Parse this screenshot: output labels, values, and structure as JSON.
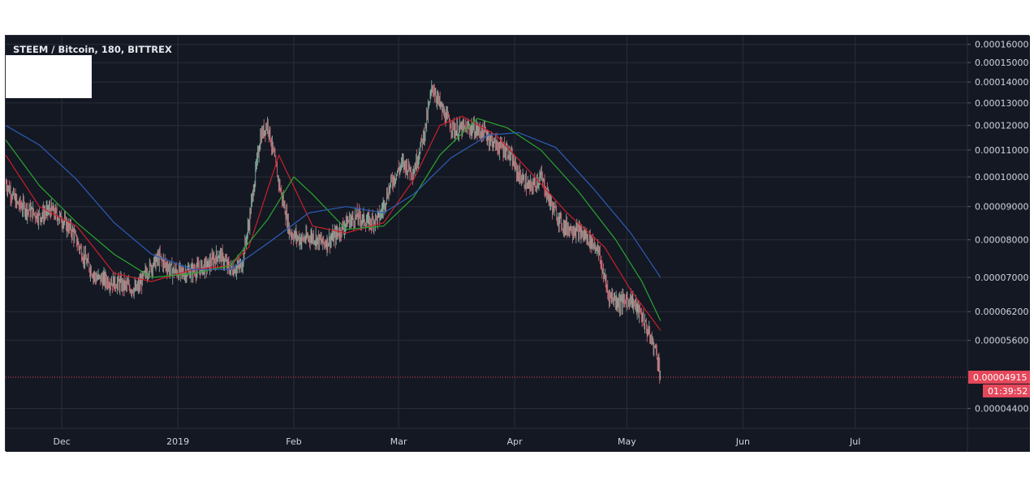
{
  "chart_title": "STEEM / Bitcoin, 180, BITTREX",
  "colors": {
    "background": "#141823",
    "grid": "#2a2e39",
    "axis_text": "#d1d4dc",
    "candle_up": "#8fb9a8",
    "candle_down": "#d9747e",
    "ma_fast": "#c8202b",
    "ma_mid": "#2aa52f",
    "ma_slow": "#2c5db7",
    "price_line": "#e5475a"
  },
  "price_axis_labels": [
    "0.00016000",
    "0.00015000",
    "0.00014000",
    "0.00013000",
    "0.00012000",
    "0.00011000",
    "0.00010000",
    "0.00009000",
    "0.00008000",
    "0.00007000",
    "0.00006200",
    "0.00005600",
    "0.00004400"
  ],
  "time_axis_labels": [
    "Dec",
    "2019",
    "Feb",
    "Mar",
    "Apr",
    "May",
    "Jun",
    "Jul"
  ],
  "current_price_label": "0.00004915",
  "countdown_label": "01:39:52",
  "chart_data": {
    "type": "candlestick",
    "title": "STEEM / Bitcoin, 180, BITTREX",
    "scale": "log",
    "ylim": [
      4.1e-05,
      0.000165
    ],
    "x_range": [
      "2018-11-16",
      "2019-07-31"
    ],
    "current_price": 4.915e-05,
    "price_series": {
      "name": "",
      "points": [
        [
          "2018-11-16",
          9.8e-05
        ],
        [
          "2018-11-19",
          9.1e-05
        ],
        [
          "2018-11-22",
          8.9e-05
        ],
        [
          "2018-11-25",
          8.7e-05
        ],
        [
          "2018-11-28",
          8.9e-05
        ],
        [
          "2018-12-01",
          8.6e-05
        ],
        [
          "2018-12-04",
          8.2e-05
        ],
        [
          "2018-12-07",
          7.5e-05
        ],
        [
          "2018-12-10",
          7e-05
        ],
        [
          "2018-12-14",
          6.9e-05
        ],
        [
          "2018-12-18",
          6.8e-05
        ],
        [
          "2018-12-21",
          6.7e-05
        ],
        [
          "2018-12-24",
          7.2e-05
        ],
        [
          "2018-12-27",
          7.5e-05
        ],
        [
          "2018-12-30",
          7.2e-05
        ],
        [
          "2019-01-02",
          7.1e-05
        ],
        [
          "2019-01-06",
          7.2e-05
        ],
        [
          "2019-01-09",
          7.3e-05
        ],
        [
          "2019-01-12",
          7.6e-05
        ],
        [
          "2019-01-15",
          7.2e-05
        ],
        [
          "2019-01-18",
          7.3e-05
        ],
        [
          "2019-01-20",
          8.5e-05
        ],
        [
          "2019-01-23",
          0.000115
        ],
        [
          "2019-01-25",
          0.000121
        ],
        [
          "2019-01-28",
          9.8e-05
        ],
        [
          "2019-01-31",
          8.2e-05
        ],
        [
          "2019-02-03",
          8e-05
        ],
        [
          "2019-02-06",
          8.1e-05
        ],
        [
          "2019-02-09",
          7.9e-05
        ],
        [
          "2019-02-12",
          8.1e-05
        ],
        [
          "2019-02-15",
          8.5e-05
        ],
        [
          "2019-02-18",
          8.7e-05
        ],
        [
          "2019-02-21",
          8.5e-05
        ],
        [
          "2019-02-24",
          8.7e-05
        ],
        [
          "2019-02-27",
          9.8e-05
        ],
        [
          "2019-03-02",
          0.000105
        ],
        [
          "2019-03-05",
          0.000102
        ],
        [
          "2019-03-08",
          0.000118
        ],
        [
          "2019-03-10",
          0.000138
        ],
        [
          "2019-03-13",
          0.000125
        ],
        [
          "2019-03-16",
          0.000118
        ],
        [
          "2019-03-20",
          0.000119
        ],
        [
          "2019-03-24",
          0.000117
        ],
        [
          "2019-03-27",
          0.000112
        ],
        [
          "2019-03-30",
          0.00011
        ],
        [
          "2019-04-02",
          0.000101
        ],
        [
          "2019-04-05",
          9.6e-05
        ],
        [
          "2019-04-08",
          0.0001
        ],
        [
          "2019-04-11",
          9e-05
        ],
        [
          "2019-04-14",
          8.4e-05
        ],
        [
          "2019-04-17",
          8.3e-05
        ],
        [
          "2019-04-20",
          8.1e-05
        ],
        [
          "2019-04-23",
          7.8e-05
        ],
        [
          "2019-04-26",
          6.6e-05
        ],
        [
          "2019-04-29",
          6.4e-05
        ],
        [
          "2019-05-02",
          6.5e-05
        ],
        [
          "2019-05-05",
          6.1e-05
        ],
        [
          "2019-05-07",
          5.7e-05
        ],
        [
          "2019-05-09",
          5.35e-05
        ],
        [
          "2019-05-10",
          4.92e-05
        ]
      ]
    },
    "moving_averages": [
      {
        "name": "",
        "color": "#c8202b",
        "points": [
          [
            "2018-11-16",
            0.000108
          ],
          [
            "2018-11-25",
            9e-05
          ],
          [
            "2018-12-05",
            8.4e-05
          ],
          [
            "2018-12-15",
            7.1e-05
          ],
          [
            "2018-12-25",
            6.9e-05
          ],
          [
            "2019-01-05",
            7.2e-05
          ],
          [
            "2019-01-15",
            7.3e-05
          ],
          [
            "2019-01-20",
            7.8e-05
          ],
          [
            "2019-01-28",
            0.000108
          ],
          [
            "2019-02-06",
            8.4e-05
          ],
          [
            "2019-02-15",
            8.2e-05
          ],
          [
            "2019-02-25",
            8.5e-05
          ],
          [
            "2019-03-05",
            9.9e-05
          ],
          [
            "2019-03-12",
            0.00012
          ],
          [
            "2019-03-18",
            0.000124
          ],
          [
            "2019-03-27",
            0.000116
          ],
          [
            "2019-04-05",
            0.000102
          ],
          [
            "2019-04-15",
            8.8e-05
          ],
          [
            "2019-04-25",
            7.8e-05
          ],
          [
            "2019-05-02",
            6.7e-05
          ],
          [
            "2019-05-10",
            5.8e-05
          ]
        ]
      },
      {
        "name": "",
        "color": "#2aa52f",
        "points": [
          [
            "2018-11-16",
            0.000114
          ],
          [
            "2018-11-25",
            9.7e-05
          ],
          [
            "2018-12-05",
            8.5e-05
          ],
          [
            "2018-12-15",
            7.6e-05
          ],
          [
            "2018-12-25",
            7e-05
          ],
          [
            "2019-01-05",
            7.1e-05
          ],
          [
            "2019-01-15",
            7.3e-05
          ],
          [
            "2019-01-25",
            8.6e-05
          ],
          [
            "2019-02-01",
            0.0001
          ],
          [
            "2019-02-06",
            9.4e-05
          ],
          [
            "2019-02-15",
            8.3e-05
          ],
          [
            "2019-02-25",
            8.4e-05
          ],
          [
            "2019-03-05",
            9.3e-05
          ],
          [
            "2019-03-12",
            0.000108
          ],
          [
            "2019-03-22",
            0.000123
          ],
          [
            "2019-03-30",
            0.000119
          ],
          [
            "2019-04-08",
            0.00011
          ],
          [
            "2019-04-18",
            9.5e-05
          ],
          [
            "2019-04-28",
            8e-05
          ],
          [
            "2019-05-05",
            6.9e-05
          ],
          [
            "2019-05-10",
            6e-05
          ]
        ]
      },
      {
        "name": "",
        "color": "#2c5db7",
        "points": [
          [
            "2018-11-16",
            0.00012
          ],
          [
            "2018-11-25",
            0.000112
          ],
          [
            "2018-12-05",
            9.9e-05
          ],
          [
            "2018-12-15",
            8.5e-05
          ],
          [
            "2018-12-25",
            7.6e-05
          ],
          [
            "2019-01-05",
            7.2e-05
          ],
          [
            "2019-01-15",
            7.2e-05
          ],
          [
            "2019-01-25",
            7.9e-05
          ],
          [
            "2019-02-05",
            8.8e-05
          ],
          [
            "2019-02-15",
            9e-05
          ],
          [
            "2019-02-25",
            8.8e-05
          ],
          [
            "2019-03-05",
            9.4e-05
          ],
          [
            "2019-03-15",
            0.000107
          ],
          [
            "2019-03-25",
            0.000116
          ],
          [
            "2019-04-02",
            0.000117
          ],
          [
            "2019-04-12",
            0.000111
          ],
          [
            "2019-04-22",
            9.6e-05
          ],
          [
            "2019-05-02",
            8.2e-05
          ],
          [
            "2019-05-10",
            7e-05
          ]
        ]
      }
    ]
  }
}
